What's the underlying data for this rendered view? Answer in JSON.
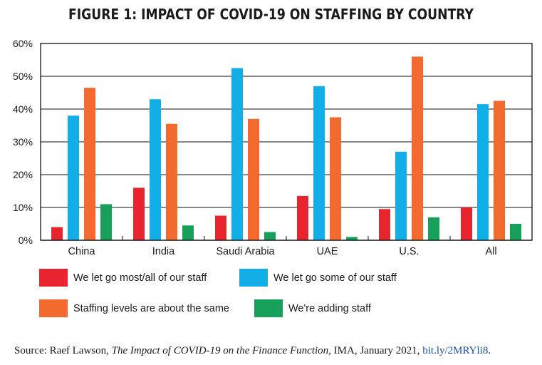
{
  "chart_data": {
    "type": "bar",
    "title": "FIGURE 1: IMPACT OF COVID-19 ON STAFFING BY COUNTRY",
    "categories": [
      "China",
      "India",
      "Saudi Arabia",
      "UAE",
      "U.S.",
      "All"
    ],
    "series": [
      {
        "name": "We let go most/all of our staff",
        "color": "#e8242e",
        "values": [
          4,
          16,
          7.5,
          13.5,
          9.5,
          10
        ]
      },
      {
        "name": "We let go some of our staff",
        "color": "#12aee8",
        "values": [
          38,
          43,
          52.5,
          47,
          27,
          41.5
        ]
      },
      {
        "name": "Staffing levels are about the same",
        "color": "#f26a2e",
        "values": [
          46.5,
          35.5,
          37,
          37.5,
          56,
          42.5
        ]
      },
      {
        "name": "We're adding staff",
        "color": "#16a05a",
        "values": [
          11,
          4.5,
          2.5,
          1,
          7,
          5
        ]
      }
    ],
    "ylim": [
      0,
      60
    ],
    "yticks": [
      0,
      10,
      20,
      30,
      40,
      50,
      60
    ],
    "ytick_labels": [
      "0%",
      "10%",
      "20%",
      "30%",
      "40%",
      "50%",
      "60%"
    ],
    "grid": true,
    "legend_position": "bottom"
  },
  "source": {
    "prefix": "Source: Raef Lawson, ",
    "work": "The Impact of COVID-19 on the Finance Function",
    "suffix": ", IMA, January 2021, ",
    "link": "bit.ly/2MRYli8",
    "end": "."
  }
}
